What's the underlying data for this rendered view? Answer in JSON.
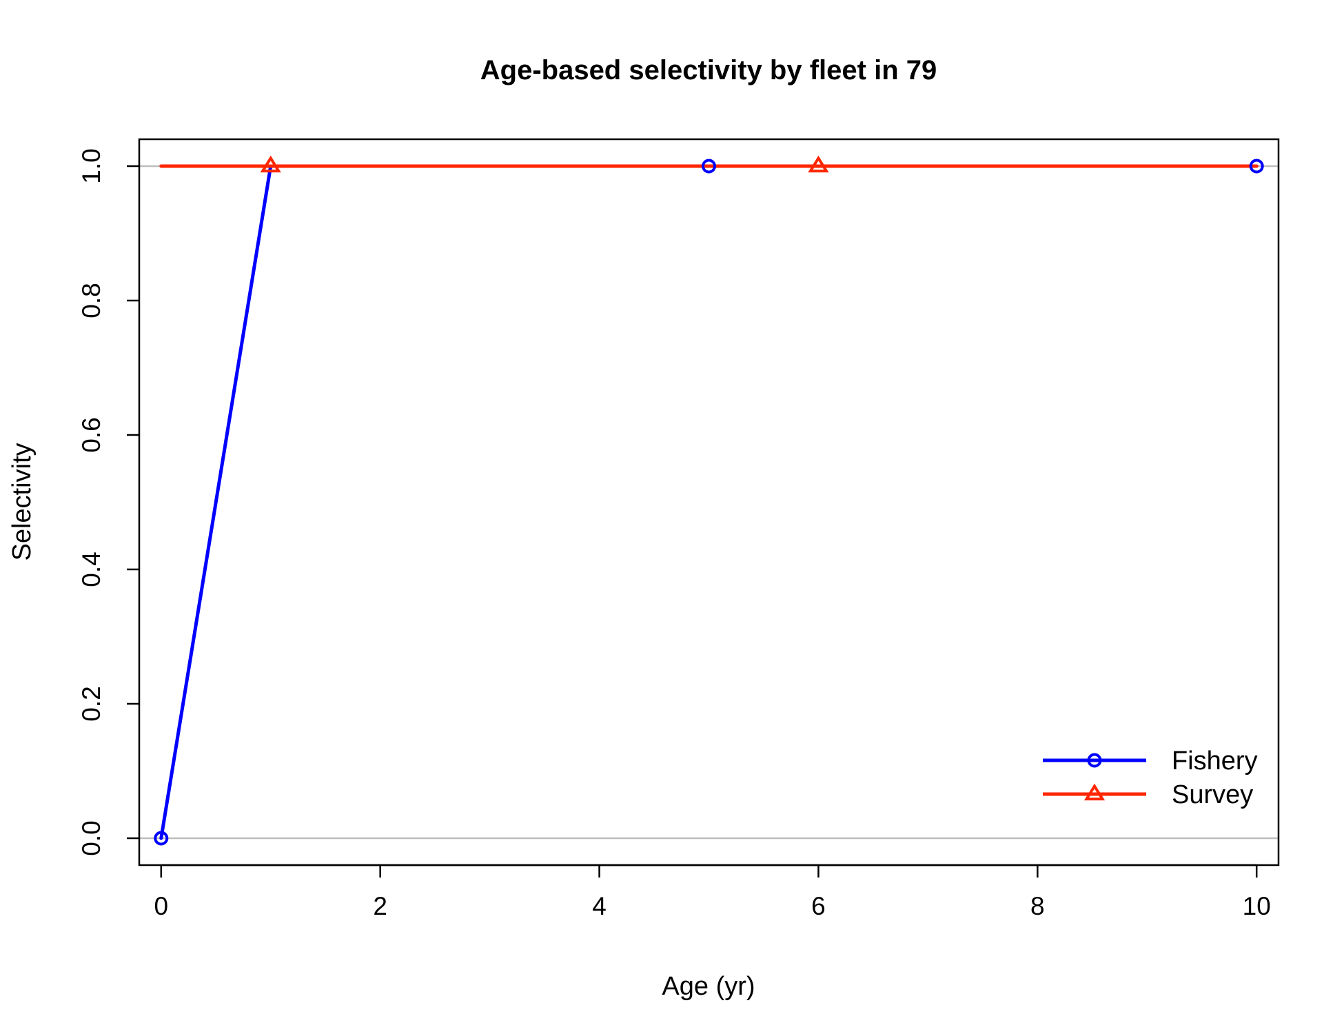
{
  "chart_data": {
    "type": "line",
    "title": "Age-based selectivity by fleet in 79",
    "xlabel": "Age (yr)",
    "ylabel": "Selectivity",
    "xlim": [
      -0.2,
      10.2
    ],
    "ylim": [
      -0.04,
      1.04
    ],
    "x_ticks": [
      0,
      2,
      4,
      6,
      8,
      10
    ],
    "x_tick_labels": [
      "0",
      "2",
      "4",
      "6",
      "8",
      "10"
    ],
    "y_ticks": [
      0.0,
      0.2,
      0.4,
      0.6,
      0.8,
      1.0
    ],
    "y_tick_labels": [
      "0.0",
      "0.2",
      "0.4",
      "0.6",
      "0.8",
      "1.0"
    ],
    "reference_lines": [
      0,
      1
    ],
    "legend_position": "bottom-right",
    "series": [
      {
        "name": "Fishery",
        "color": "#0000ff",
        "marker": "circle",
        "x": [
          0,
          1,
          2,
          3,
          4,
          5,
          6,
          7,
          8,
          9,
          10
        ],
        "y": [
          0,
          1,
          1,
          1,
          1,
          1,
          1,
          1,
          1,
          1,
          1
        ],
        "marker_x": [
          0,
          5,
          10
        ]
      },
      {
        "name": "Survey",
        "color": "#ff2600",
        "marker": "triangle",
        "x": [
          0,
          1,
          2,
          3,
          4,
          5,
          6,
          7,
          8,
          9,
          10
        ],
        "y": [
          1,
          1,
          1,
          1,
          1,
          1,
          1,
          1,
          1,
          1,
          1
        ],
        "marker_x": [
          1,
          6
        ]
      }
    ]
  }
}
